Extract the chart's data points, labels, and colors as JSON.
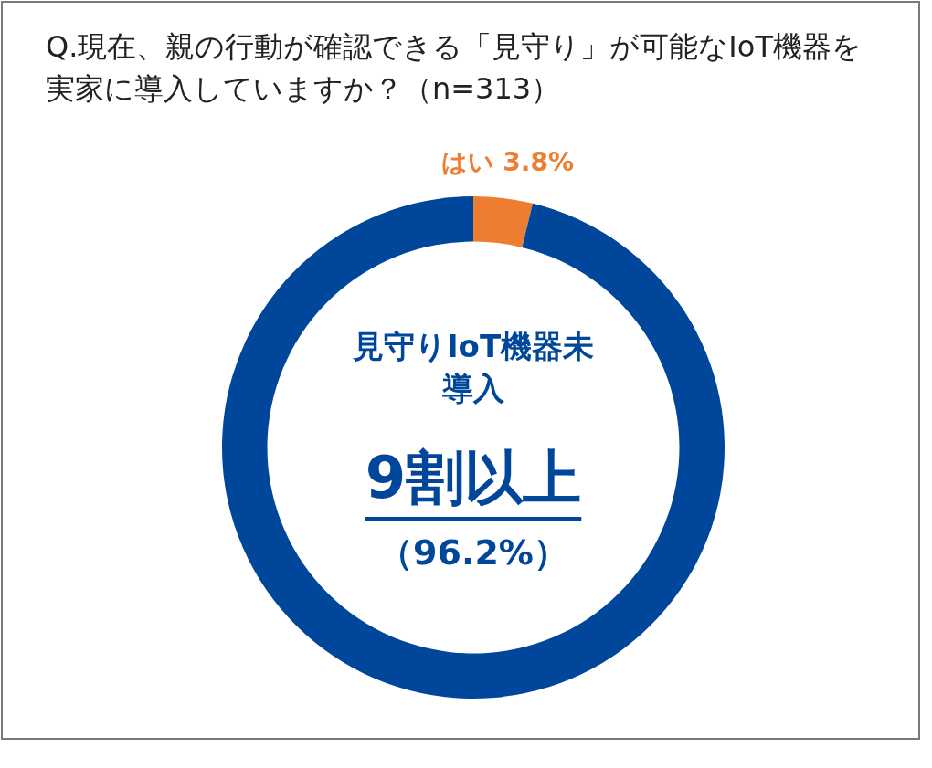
{
  "chart_data": {
    "type": "donut",
    "title": "Q.現在、親の行動が確認できる「見守り」が可能なIoT機器を実家に導入していますか？（n=313）",
    "categories": [
      "はい",
      "見守りIoT機器未導入"
    ],
    "values": [
      3.8,
      96.2
    ],
    "colors": [
      "#ed7d31",
      "#00469b"
    ],
    "value_labels": [
      "3.8%",
      "（96.2%）"
    ],
    "annotations": [
      "9割以上"
    ],
    "legend": false
  }
}
